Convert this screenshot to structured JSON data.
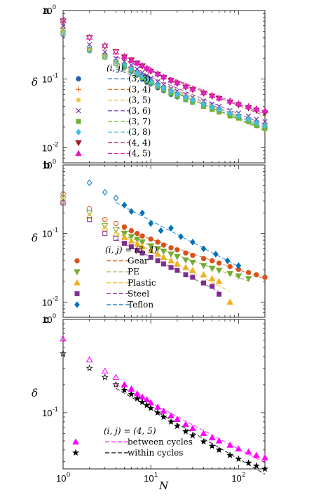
{
  "chart_data": [
    {
      "panel": "a",
      "type": "scatter",
      "xlabel": "",
      "ylabel": "δ",
      "xscale": "log",
      "yscale": "log",
      "xlim": [
        1,
        200
      ],
      "ylim": [
        0.006,
        1
      ],
      "legend_title": "(i, j)",
      "legend_position": "left",
      "series": [
        {
          "name": "(3, 3)",
          "color": "#1f5fa8",
          "marker": "circle",
          "x": [
            1,
            2,
            3,
            4,
            5,
            6,
            7,
            8,
            9,
            10,
            12,
            14,
            17,
            20,
            25,
            30,
            40,
            50,
            60,
            80,
            100,
            130,
            160,
            200
          ],
          "y": [
            0.45,
            0.26,
            0.21,
            0.17,
            0.15,
            0.13,
            0.115,
            0.1,
            0.09,
            0.085,
            0.075,
            0.068,
            0.06,
            0.055,
            0.05,
            0.046,
            0.04,
            0.037,
            0.034,
            0.03,
            0.028,
            0.025,
            0.022,
            0.02
          ]
        },
        {
          "name": "(3, 4)",
          "color": "#e07830",
          "marker": "plus",
          "x": [
            1,
            2,
            3,
            4,
            5,
            6,
            7,
            8,
            9,
            10,
            12,
            14,
            17,
            20,
            25,
            30,
            40,
            50,
            60,
            80,
            100,
            130,
            160,
            200
          ],
          "y": [
            0.55,
            0.28,
            0.23,
            0.19,
            0.17,
            0.15,
            0.13,
            0.115,
            0.105,
            0.095,
            0.085,
            0.076,
            0.068,
            0.062,
            0.055,
            0.05,
            0.044,
            0.04,
            0.037,
            0.033,
            0.03,
            0.027,
            0.024,
            0.022
          ]
        },
        {
          "name": "(3, 5)",
          "color": "#e8b830",
          "marker": "asterisk",
          "x": [
            1,
            2,
            3,
            4,
            5,
            6,
            7,
            8,
            9,
            10,
            12,
            14,
            17,
            20,
            25,
            30,
            40,
            50,
            60,
            80,
            100,
            130,
            160,
            200
          ],
          "y": [
            0.5,
            0.27,
            0.22,
            0.18,
            0.16,
            0.14,
            0.12,
            0.108,
            0.098,
            0.09,
            0.08,
            0.072,
            0.064,
            0.058,
            0.052,
            0.047,
            0.041,
            0.037,
            0.034,
            0.03,
            0.027,
            0.024,
            0.021,
            0.019
          ]
        },
        {
          "name": "(3, 6)",
          "color": "#7030a0",
          "marker": "x",
          "x": [
            1,
            2,
            3,
            4,
            5,
            6,
            7,
            8,
            9,
            10,
            12,
            14,
            17,
            20,
            25,
            30,
            40,
            50,
            60,
            80,
            100,
            130,
            160,
            200
          ],
          "y": [
            0.6,
            0.32,
            0.25,
            0.2,
            0.18,
            0.16,
            0.14,
            0.125,
            0.113,
            0.103,
            0.092,
            0.083,
            0.073,
            0.067,
            0.06,
            0.054,
            0.048,
            0.043,
            0.04,
            0.035,
            0.032,
            0.029,
            0.026,
            0.024
          ]
        },
        {
          "name": "(3, 7)",
          "color": "#70b030",
          "marker": "square",
          "x": [
            1,
            2,
            3,
            4,
            5,
            6,
            7,
            8,
            9,
            10,
            12,
            14,
            17,
            20,
            25,
            30,
            40,
            50,
            60,
            80,
            100,
            130,
            160,
            200
          ],
          "y": [
            0.48,
            0.27,
            0.21,
            0.17,
            0.155,
            0.135,
            0.118,
            0.105,
            0.095,
            0.088,
            0.078,
            0.07,
            0.062,
            0.056,
            0.05,
            0.046,
            0.04,
            0.036,
            0.033,
            0.029,
            0.027,
            0.024,
            0.021,
            0.019
          ]
        },
        {
          "name": "(3, 8)",
          "color": "#40c0e0",
          "marker": "diamond",
          "x": [
            1,
            2,
            3,
            4,
            5,
            6,
            7,
            8,
            9,
            10,
            12,
            14,
            17,
            20,
            25,
            30,
            40,
            50,
            60,
            80,
            100,
            130,
            160,
            200
          ],
          "y": [
            0.5,
            0.27,
            0.22,
            0.18,
            0.16,
            0.14,
            0.122,
            0.11,
            0.1,
            0.092,
            0.082,
            0.074,
            0.066,
            0.06,
            0.054,
            0.049,
            0.043,
            0.039,
            0.036,
            0.032,
            0.029,
            0.026,
            0.023,
            0.021
          ]
        },
        {
          "name": "(4, 4)",
          "color": "#a01c2c",
          "marker": "triangle-down",
          "x": [
            1,
            2,
            3,
            4,
            5,
            6,
            7,
            8,
            9,
            10,
            12,
            14,
            17,
            20,
            25,
            30,
            40,
            50,
            60,
            80,
            100,
            130,
            160,
            200
          ],
          "y": [
            0.7,
            0.4,
            0.3,
            0.25,
            0.21,
            0.19,
            0.17,
            0.155,
            0.14,
            0.13,
            0.117,
            0.105,
            0.095,
            0.086,
            0.076,
            0.07,
            0.062,
            0.056,
            0.052,
            0.046,
            0.042,
            0.038,
            0.035,
            0.032
          ]
        },
        {
          "name": "(4, 5)",
          "color": "#e020c0",
          "marker": "triangle-up",
          "x": [
            1,
            2,
            3,
            4,
            5,
            6,
            7,
            8,
            9,
            10,
            12,
            14,
            17,
            20,
            25,
            30,
            40,
            50,
            60,
            80,
            100,
            130,
            160,
            200
          ],
          "y": [
            0.72,
            0.41,
            0.31,
            0.25,
            0.215,
            0.19,
            0.172,
            0.158,
            0.145,
            0.135,
            0.12,
            0.108,
            0.097,
            0.089,
            0.079,
            0.072,
            0.064,
            0.058,
            0.053,
            0.048,
            0.044,
            0.04,
            0.037,
            0.035
          ]
        }
      ]
    },
    {
      "panel": "b",
      "type": "scatter",
      "xlabel": "",
      "ylabel": "δ",
      "xscale": "log",
      "yscale": "log",
      "xlim": [
        1,
        200
      ],
      "ylim": [
        0.006,
        1
      ],
      "legend_title": "(i, j) = (3, 4)",
      "legend_position": "left",
      "series": [
        {
          "name": "Gear",
          "color": "#d95319",
          "marker": "circle",
          "x": [
            1,
            2,
            3,
            4,
            5,
            6,
            7,
            8,
            10,
            12,
            14,
            17,
            20,
            25,
            30,
            40,
            50,
            60,
            80,
            100,
            130,
            160,
            200
          ],
          "y": [
            0.38,
            0.23,
            0.16,
            0.14,
            0.125,
            0.11,
            0.1,
            0.092,
            0.083,
            0.075,
            0.068,
            0.062,
            0.058,
            0.052,
            0.048,
            0.043,
            0.04,
            0.037,
            0.033,
            0.03,
            0.027,
            0.025,
            0.023
          ]
        },
        {
          "name": "PE",
          "color": "#77ac30",
          "marker": "triangle-down",
          "x": [
            1,
            2,
            3,
            4,
            5,
            6,
            7,
            8,
            10,
            12,
            14,
            17,
            20,
            25,
            30,
            40,
            50,
            60,
            80,
            100,
            130
          ],
          "y": [
            0.32,
            0.2,
            0.13,
            0.115,
            0.1,
            0.09,
            0.082,
            0.075,
            0.066,
            0.06,
            0.055,
            0.05,
            0.046,
            0.041,
            0.038,
            0.034,
            0.031,
            0.029,
            0.026,
            0.024,
            0.022
          ]
        },
        {
          "name": "Plastic",
          "color": "#edb120",
          "marker": "triangle-up",
          "x": [
            1,
            2,
            3,
            4,
            5,
            6,
            7,
            8,
            10,
            12,
            14,
            17,
            20,
            25,
            30,
            40,
            50,
            60,
            80
          ],
          "y": [
            0.3,
            0.18,
            0.12,
            0.1,
            0.088,
            0.078,
            0.07,
            0.064,
            0.056,
            0.05,
            0.045,
            0.04,
            0.036,
            0.032,
            0.029,
            0.025,
            0.022,
            0.02,
            0.01
          ]
        },
        {
          "name": "Steel",
          "color": "#7e2f8e",
          "marker": "square",
          "x": [
            1,
            2,
            3,
            4,
            5,
            6,
            7,
            8,
            10,
            12,
            14,
            17,
            20,
            25,
            30,
            40,
            50,
            60
          ],
          "y": [
            0.28,
            0.16,
            0.1,
            0.085,
            0.072,
            0.064,
            0.057,
            0.052,
            0.045,
            0.04,
            0.036,
            0.032,
            0.029,
            0.025,
            0.023,
            0.019,
            0.017,
            0.013
          ]
        },
        {
          "name": "Teflon",
          "color": "#0072bd",
          "marker": "diamond",
          "x": [
            2,
            3,
            4,
            5,
            6,
            8,
            10,
            13,
            17,
            22,
            30,
            40,
            55,
            75,
            100
          ],
          "y": [
            0.55,
            0.4,
            0.33,
            0.26,
            0.21,
            0.2,
            0.14,
            0.11,
            0.12,
            0.09,
            0.075,
            0.06,
            0.05,
            0.04,
            0.034
          ]
        }
      ]
    },
    {
      "panel": "c",
      "type": "scatter",
      "xlabel": "N",
      "ylabel": "δ",
      "xscale": "log",
      "yscale": "log",
      "xlim": [
        1,
        200
      ],
      "ylim": [
        0.025,
        1
      ],
      "legend_title": "(i, j) = (4, 5)",
      "legend_position": "bottom-left",
      "series": [
        {
          "name": "between cycles",
          "color": "#ff00ff",
          "marker": "triangle-up",
          "x": [
            1,
            2,
            3,
            4,
            5,
            6,
            7,
            8,
            9,
            10,
            12,
            14,
            17,
            20,
            25,
            30,
            40,
            50,
            60,
            80,
            100,
            130,
            160,
            200
          ],
          "y": [
            0.62,
            0.37,
            0.28,
            0.24,
            0.2,
            0.18,
            0.16,
            0.148,
            0.138,
            0.128,
            0.115,
            0.104,
            0.093,
            0.085,
            0.075,
            0.068,
            0.06,
            0.054,
            0.05,
            0.045,
            0.041,
            0.038,
            0.035,
            0.033
          ]
        },
        {
          "name": "within cycles",
          "color": "#000000",
          "marker": "star",
          "x": [
            1,
            2,
            3,
            4,
            5,
            6,
            7,
            8,
            9,
            10,
            12,
            14,
            17,
            20,
            25,
            30,
            40,
            50,
            60,
            80,
            100,
            130,
            160,
            200
          ],
          "y": [
            0.43,
            0.3,
            0.24,
            0.2,
            0.175,
            0.158,
            0.142,
            0.13,
            0.12,
            0.112,
            0.1,
            0.09,
            0.08,
            0.072,
            0.063,
            0.057,
            0.049,
            0.044,
            0.04,
            0.035,
            0.032,
            0.029,
            0.027,
            0.025
          ]
        }
      ]
    }
  ],
  "panel_labels": [
    "a",
    "b",
    "c"
  ],
  "legend_text": {
    "a": [
      "(3, 3)",
      "(3, 4)",
      "(3, 5)",
      "(3, 6)",
      "(3, 7)",
      "(3, 8)",
      "(4, 4)",
      "(4, 5)"
    ],
    "b": [
      "Gear",
      "PE",
      "Plastic",
      "Steel",
      "Teflon"
    ],
    "c": [
      "between cycles",
      "within cycles"
    ]
  },
  "axis_ticks": {
    "x": [
      "10",
      "10",
      "10"
    ],
    "x_exp": [
      "0",
      "1",
      "2"
    ],
    "y_ab": [
      "10",
      "10",
      "10"
    ],
    "y_ab_exp": [
      "0",
      "-1",
      "-2"
    ],
    "y_c": [
      "10",
      "10"
    ],
    "y_c_exp": [
      "0",
      "-1"
    ]
  }
}
